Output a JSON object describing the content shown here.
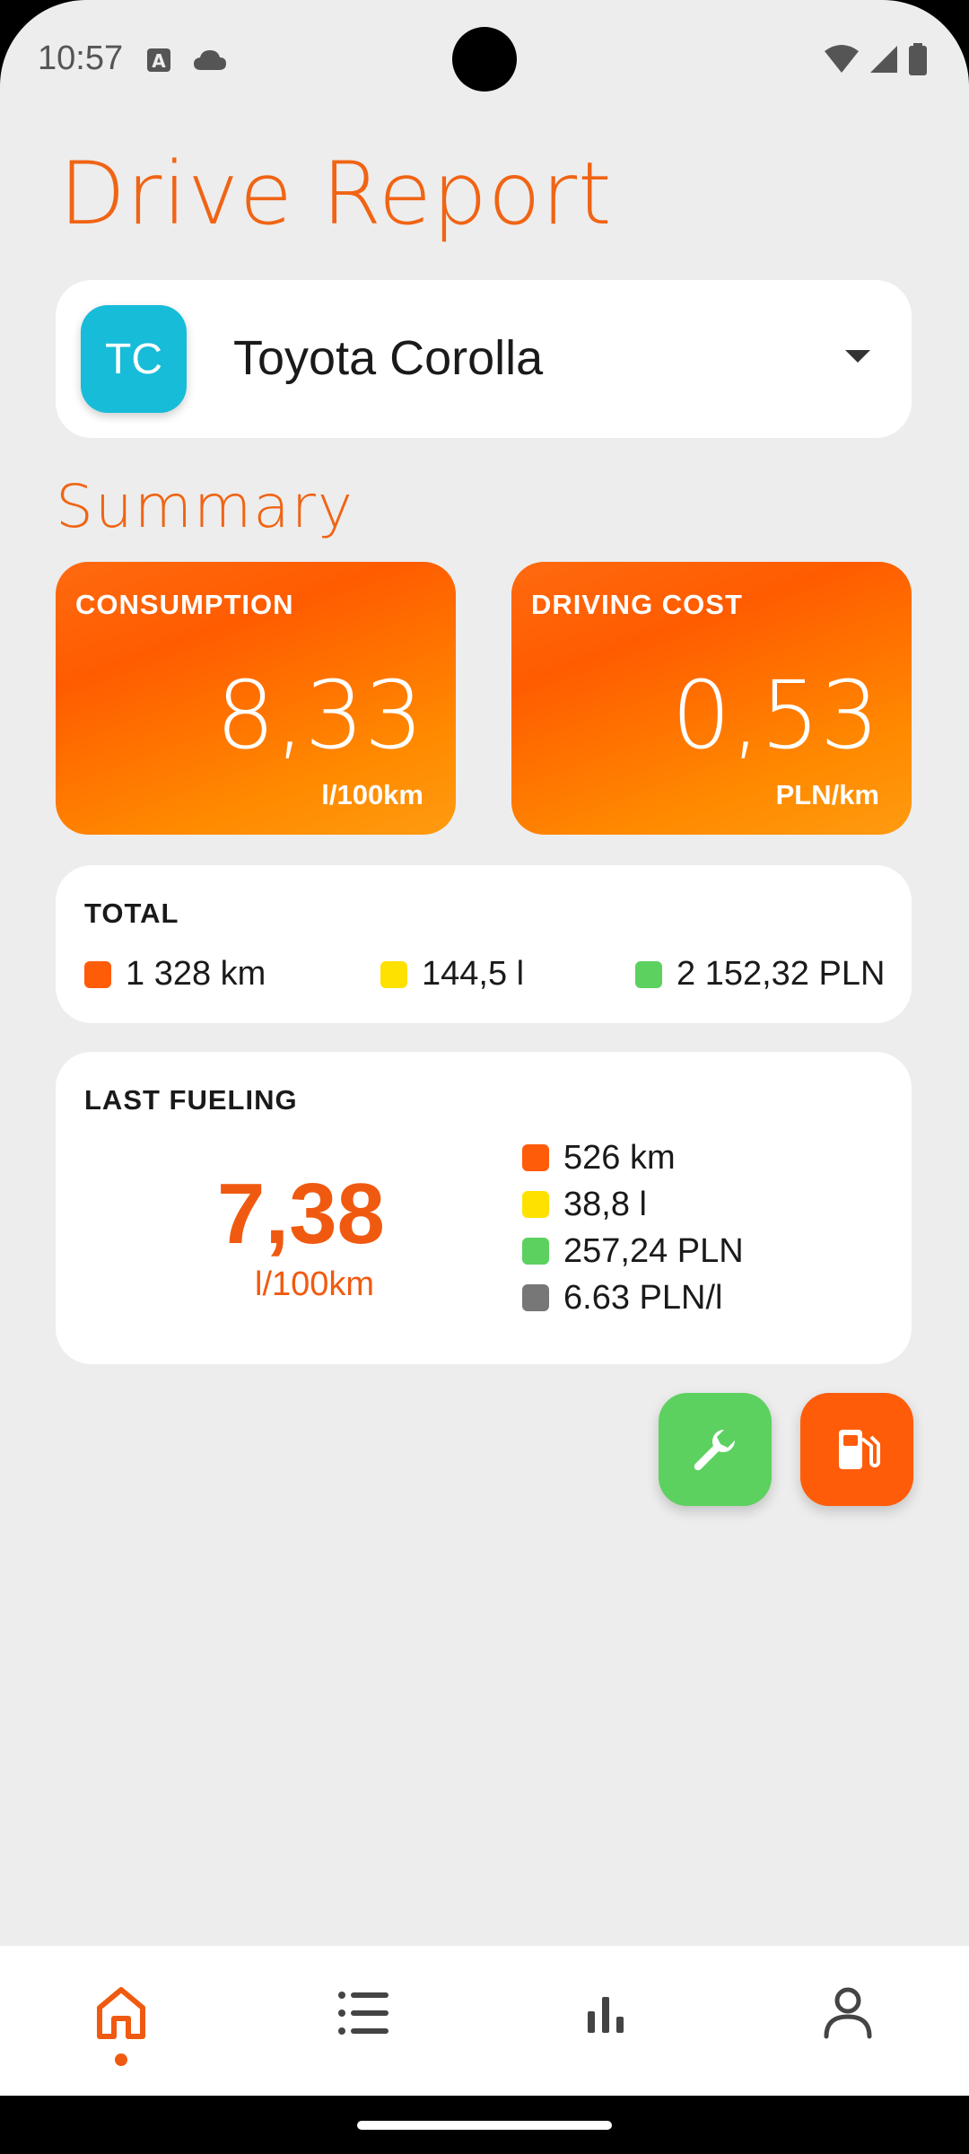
{
  "status_bar": {
    "time": "10:57",
    "icons": [
      "text-a-icon",
      "cloud-icon",
      "wifi-icon",
      "signal-icon",
      "battery-icon"
    ]
  },
  "app": {
    "title": "Drive Report",
    "accent_color": "#f06414"
  },
  "vehicle_selector": {
    "initials": "TC",
    "name": "Toyota Corolla",
    "avatar_color": "#17bcd8"
  },
  "summary": {
    "title": "Summary",
    "consumption": {
      "label": "CONSUMPTION",
      "value": "8,33",
      "unit": "l/100km"
    },
    "driving_cost": {
      "label": "DRIVING COST",
      "value": "0,53",
      "unit": "PLN/km"
    }
  },
  "total": {
    "heading": "TOTAL",
    "items": [
      {
        "text": "1 328 km",
        "color": "#ff5c0a"
      },
      {
        "text": "144,5 l",
        "color": "#ffe100"
      },
      {
        "text": "2 152,32 PLN",
        "color": "#5cd15f"
      }
    ]
  },
  "last_fueling": {
    "heading": "LAST FUELING",
    "value": "7,38",
    "unit": "l/100km",
    "items": [
      {
        "text": "526 km",
        "color": "#ff5c0a"
      },
      {
        "text": "38,8 l",
        "color": "#ffe100"
      },
      {
        "text": "257,24 PLN",
        "color": "#5cd15f"
      },
      {
        "text": "6.63 PLN/l",
        "color": "#777777"
      }
    ]
  },
  "actions": {
    "service_icon": "wrench-icon",
    "fuel_icon": "fuel-pump-icon"
  },
  "bottom_nav": {
    "items": [
      "home-icon",
      "list-icon",
      "bar-chart-icon",
      "profile-icon"
    ],
    "active": "home-icon"
  }
}
